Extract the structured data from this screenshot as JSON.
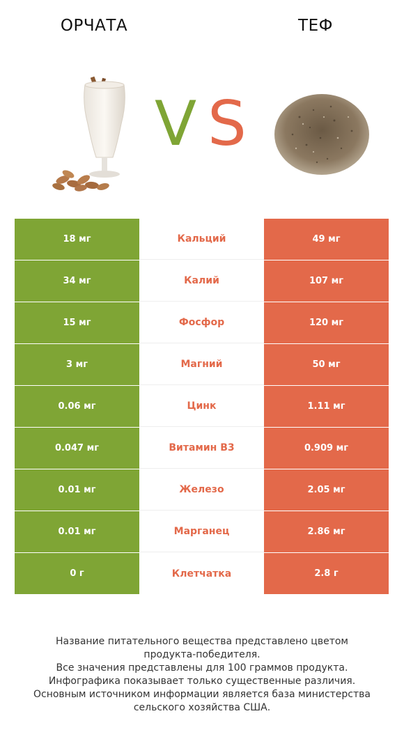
{
  "header": {
    "left_title": "ОРЧАТА",
    "right_title": "ТЕФ",
    "vs_v": "V",
    "vs_s": "S"
  },
  "images": {
    "left": "horchata-glass-with-almonds",
    "right": "teff-grain-pile"
  },
  "colors": {
    "left_accent": "#7fa535",
    "right_accent": "#e3694a"
  },
  "rows": [
    {
      "left": "18 мг",
      "nutrient": "Кальций",
      "right": "49 мг",
      "winner": "right"
    },
    {
      "left": "34 мг",
      "nutrient": "Калий",
      "right": "107 мг",
      "winner": "right"
    },
    {
      "left": "15 мг",
      "nutrient": "Фосфор",
      "right": "120 мг",
      "winner": "right"
    },
    {
      "left": "3 мг",
      "nutrient": "Магний",
      "right": "50 мг",
      "winner": "right"
    },
    {
      "left": "0.06 мг",
      "nutrient": "Цинк",
      "right": "1.11 мг",
      "winner": "right"
    },
    {
      "left": "0.047 мг",
      "nutrient": "Витамин B3",
      "right": "0.909 мг",
      "winner": "right"
    },
    {
      "left": "0.01 мг",
      "nutrient": "Железо",
      "right": "2.05 мг",
      "winner": "right"
    },
    {
      "left": "0.01 мг",
      "nutrient": "Марганец",
      "right": "2.86 мг",
      "winner": "right"
    },
    {
      "left": "0 г",
      "nutrient": "Клетчатка",
      "right": "2.8 г",
      "winner": "right"
    }
  ],
  "footer": {
    "line1": "Название питательного вещества представлено цветом",
    "line2": "продукта-победителя.",
    "line3": "Все значения представлены для 100 граммов продукта.",
    "line4": "Инфографика показывает только существенные различия.",
    "line5": "Основным источником информации является база министерства",
    "line6": "сельского хозяйства США."
  }
}
